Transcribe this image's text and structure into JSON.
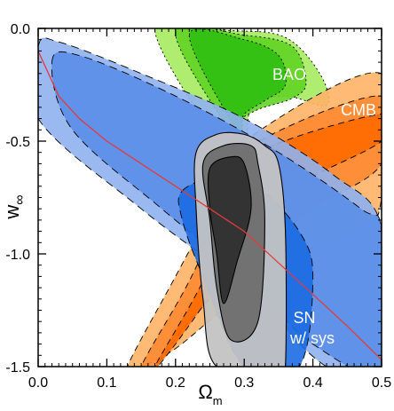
{
  "chart_data": {
    "type": "contour",
    "xlim": [
      0.0,
      0.5
    ],
    "ylim": [
      -1.5,
      0.0
    ],
    "x_ticks": [
      "0.0",
      "0.1",
      "0.2",
      "0.3",
      "0.4",
      "0.5"
    ],
    "y_ticks": [
      "0.0",
      "-0.5",
      "-1.0",
      "-1.5"
    ],
    "xlabel_main": "Ω",
    "xlabel_sub": "m",
    "ylabel_main": "w",
    "ylabel_sub": "∞",
    "grid": false,
    "labels": {
      "bao": "BAO",
      "cmb": "CMB",
      "sn_line1": "SN",
      "sn_line2": "w/ sys"
    },
    "colors": {
      "bao": [
        "#2fbf12",
        "#62d325",
        "#a6eb62"
      ],
      "cmb": [
        "#ff6a00",
        "#ff8a33",
        "#ffb266"
      ],
      "sn": [
        "#1c6be2",
        "#5a8ee8",
        "#8fb1ef"
      ],
      "combined": [
        "#2f2f2f",
        "#6e6e6e",
        "#c3c3c3"
      ],
      "fit_line": "#e23b3b"
    },
    "fit_line": {
      "x": [
        0.0,
        0.03,
        0.06,
        0.1,
        0.15,
        0.2,
        0.25,
        0.3,
        0.35,
        0.4,
        0.45,
        0.5
      ],
      "y": [
        -0.1,
        -0.3,
        -0.4,
        -0.5,
        -0.6,
        -0.7,
        -0.8,
        -0.9,
        -1.04,
        -1.18,
        -1.32,
        -1.47
      ]
    },
    "regions": [
      {
        "name": "BAO",
        "levels": [
          {
            "x": [
              0.17,
              0.28,
              0.36,
              0.41,
              0.42,
              0.36,
              0.31,
              0.29
            ],
            "y": [
              -0.01,
              -0.01,
              -0.04,
              -0.2,
              -0.34,
              -0.3,
              -0.35,
              -0.6
            ]
          },
          {
            "x": [
              0.2,
              0.3,
              0.37,
              0.39,
              0.37,
              0.32,
              0.29,
              0.29
            ],
            "y": [
              -0.02,
              -0.03,
              -0.08,
              -0.24,
              -0.31,
              -0.36,
              -0.42,
              -0.5
            ]
          },
          {
            "x": [
              0.22,
              0.3,
              0.35,
              0.36,
              0.33,
              0.3,
              0.29
            ],
            "y": [
              -0.03,
              -0.05,
              -0.12,
              -0.25,
              -0.32,
              -0.38,
              -0.45
            ]
          }
        ]
      },
      {
        "name": "CMB",
        "levels": [
          {
            "x": [
              0.3,
              0.5,
              0.5,
              0.47,
              0.38,
              0.28,
              0.2,
              0.15,
              0.13,
              0.2,
              0.27
            ],
            "y": [
              -0.5,
              -0.2,
              -0.75,
              -0.9,
              -1.0,
              -1.22,
              -1.42,
              -1.5,
              -1.5,
              -1.1,
              -0.7
            ]
          },
          {
            "x": [
              0.31,
              0.5,
              0.5,
              0.4,
              0.3,
              0.22,
              0.17,
              0.15,
              0.22,
              0.28
            ],
            "y": [
              -0.52,
              -0.3,
              -0.6,
              -0.8,
              -1.05,
              -1.3,
              -1.5,
              -1.5,
              -1.12,
              -0.72
            ]
          },
          {
            "x": [
              0.32,
              0.5,
              0.5,
              0.35,
              0.27,
              0.2,
              0.17,
              0.24,
              0.29
            ],
            "y": [
              -0.55,
              -0.38,
              -0.5,
              -0.75,
              -1.1,
              -1.4,
              -1.5,
              -1.12,
              -0.74
            ]
          }
        ]
      },
      {
        "name": "SN",
        "levels": [
          {
            "x": [
              0.0,
              0.03,
              0.15,
              0.3,
              0.43,
              0.5,
              0.5,
              0.42,
              0.3,
              0.15,
              0.0
            ],
            "y": [
              -0.08,
              -0.06,
              -0.2,
              -0.4,
              -0.65,
              -0.88,
              -1.5,
              -1.5,
              -1.15,
              -0.8,
              -0.4
            ]
          },
          {
            "x": [
              0.02,
              0.06,
              0.2,
              0.35,
              0.47,
              0.5,
              0.5,
              0.4,
              0.3,
              0.18,
              0.05
            ],
            "y": [
              -0.15,
              -0.12,
              -0.3,
              -0.55,
              -0.8,
              -0.9,
              -1.5,
              -1.4,
              -1.1,
              -0.8,
              -0.45
            ]
          },
          {
            "x": [
              0.21,
              0.27,
              0.32,
              0.38,
              0.4,
              0.38,
              0.3,
              0.24,
              0.21
            ],
            "y": [
              -0.72,
              -0.65,
              -0.7,
              -0.9,
              -1.1,
              -1.5,
              -1.5,
              -1.1,
              -0.85
            ]
          }
        ]
      },
      {
        "name": "Combined",
        "levels": [
          {
            "x": [
              0.23,
              0.26,
              0.3,
              0.33,
              0.35,
              0.36,
              0.36,
              0.35,
              0.26,
              0.24,
              0.23
            ],
            "y": [
              -0.55,
              -0.47,
              -0.47,
              -0.52,
              -0.6,
              -0.9,
              -1.5,
              -1.5,
              -1.5,
              -1.2,
              -0.8
            ]
          },
          {
            "x": [
              0.24,
              0.27,
              0.31,
              0.32,
              0.33,
              0.32,
              0.28,
              0.26,
              0.25
            ],
            "y": [
              -0.6,
              -0.52,
              -0.52,
              -0.6,
              -0.85,
              -1.3,
              -1.38,
              -1.15,
              -0.85
            ]
          },
          {
            "x": [
              0.25,
              0.28,
              0.3,
              0.31,
              0.29,
              0.27,
              0.26,
              0.25
            ],
            "y": [
              -0.62,
              -0.57,
              -0.6,
              -0.8,
              -1.03,
              -1.22,
              -1.0,
              -0.8
            ]
          }
        ]
      }
    ]
  }
}
